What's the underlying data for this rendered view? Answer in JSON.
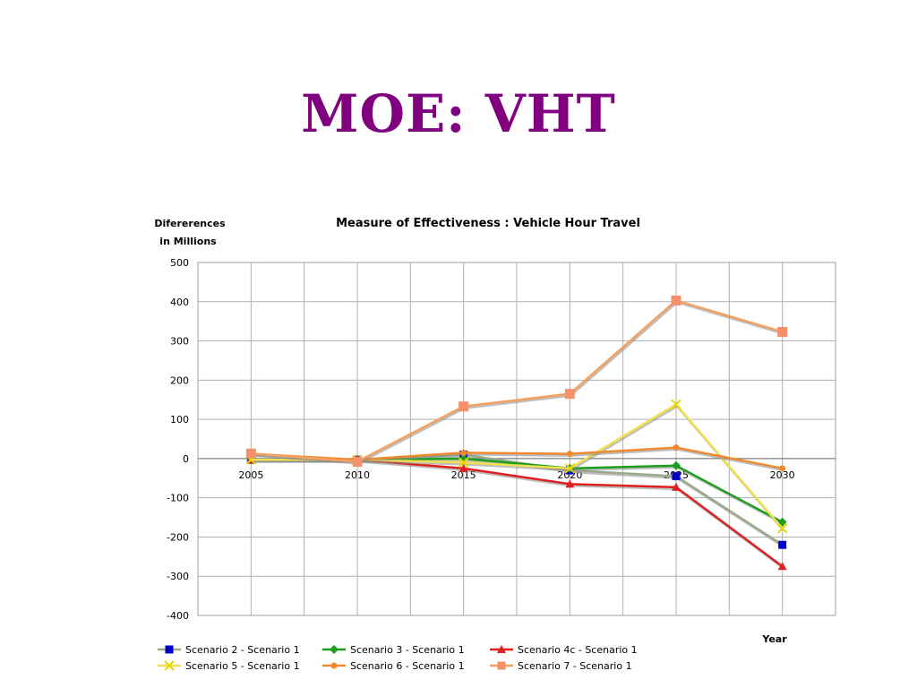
{
  "slide": {
    "title": "MOE: VHT",
    "title_color": "#800080"
  },
  "chart_data": {
    "type": "line",
    "title": "Measure of Effectiveness : Vehicle Hour Travel",
    "ylabel": [
      "Difererences",
      "in Millions"
    ],
    "xlabel": "Year",
    "categories": [
      "2005",
      "2010",
      "2015",
      "2020",
      "2025",
      "2030"
    ],
    "ylim": [
      -400,
      500
    ],
    "yticks": [
      500,
      400,
      300,
      200,
      100,
      0,
      -100,
      -200,
      -300,
      -400
    ],
    "ytick_labels": [
      "500",
      "400",
      "300",
      "200",
      "100",
      "0",
      "-100",
      "-200",
      "-300",
      "-400"
    ],
    "grid": true,
    "legend_position": "bottom",
    "series": [
      {
        "name": "Scenario 2 - Scenario 1",
        "values": [
          -3,
          -3,
          10,
          -30,
          -45,
          -220
        ],
        "color": "#9aaa8a",
        "marker": "square",
        "marker_color": "#0000cc"
      },
      {
        "name": "Scenario 3 - Scenario 1",
        "values": [
          -3,
          -3,
          0,
          -25,
          -18,
          -162
        ],
        "color": "#1e9e1e",
        "marker": "diamond",
        "marker_color": "#1e9e1e"
      },
      {
        "name": "Scenario 4c - Scenario 1",
        "values": [
          -3,
          -3,
          -25,
          -65,
          -73,
          -275
        ],
        "color": "#e02020",
        "marker": "triangle",
        "marker_color": "#e02020"
      },
      {
        "name": "Scenario 5 - Scenario 1",
        "values": [
          -3,
          -3,
          -10,
          -25,
          138,
          -178
        ],
        "color": "#f0e050",
        "marker": "x",
        "marker_color": "#e8d800"
      },
      {
        "name": "Scenario 6 - Scenario 1",
        "values": [
          12,
          -3,
          15,
          12,
          28,
          -25
        ],
        "color": "#f08a30",
        "marker": "circle",
        "marker_color": "#f08a30"
      },
      {
        "name": "Scenario 7 - Scenario 1",
        "values": [
          13,
          -8,
          133,
          165,
          403,
          323
        ],
        "color": "#f4a060",
        "marker": "square",
        "marker_color": "#f4906a"
      }
    ]
  }
}
